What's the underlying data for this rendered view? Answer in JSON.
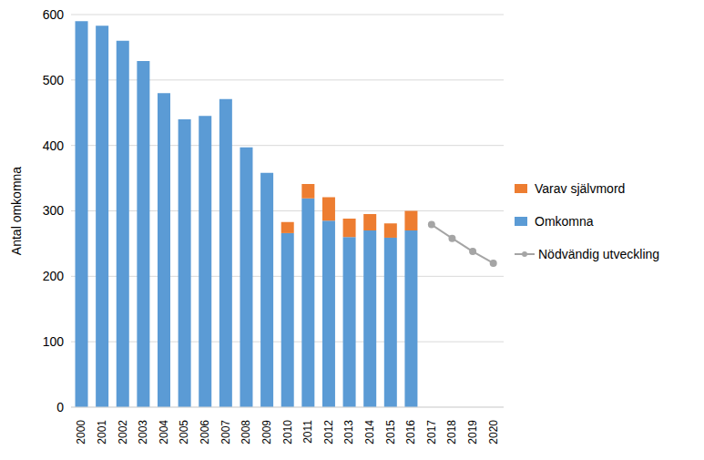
{
  "chart_data": {
    "type": "bar",
    "stacked": true,
    "y_label": "Antal omkomna",
    "categories": [
      "2000",
      "2001",
      "2002",
      "2003",
      "2004",
      "2005",
      "2006",
      "2007",
      "2008",
      "2009",
      "2010",
      "2011",
      "2012",
      "2013",
      "2014",
      "2015",
      "2016",
      "2017",
      "2018",
      "2019",
      "2020"
    ],
    "series": [
      {
        "name": "Varav självmord",
        "type": "bar",
        "color": "#ed7d31",
        "values": [
          null,
          null,
          null,
          null,
          null,
          null,
          null,
          null,
          null,
          null,
          17,
          22,
          36,
          28,
          25,
          22,
          30,
          null,
          null,
          null,
          null
        ]
      },
      {
        "name": "Omkomna",
        "type": "bar",
        "color": "#5b9bd5",
        "values": [
          590,
          583,
          560,
          529,
          480,
          440,
          445,
          471,
          397,
          358,
          266,
          319,
          285,
          260,
          270,
          259,
          270,
          null,
          null,
          null,
          null
        ]
      },
      {
        "name": "Nödvändig utveckling",
        "type": "line",
        "color": "#a5a5a5",
        "marker": "circle",
        "values": [
          null,
          null,
          null,
          null,
          null,
          null,
          null,
          null,
          null,
          null,
          null,
          null,
          null,
          null,
          null,
          null,
          null,
          279,
          258,
          238,
          220
        ]
      }
    ],
    "ylim": [
      0,
      600
    ],
    "yticks": [
      0,
      100,
      200,
      300,
      400,
      500,
      600
    ],
    "grid": true,
    "legend": "right"
  }
}
